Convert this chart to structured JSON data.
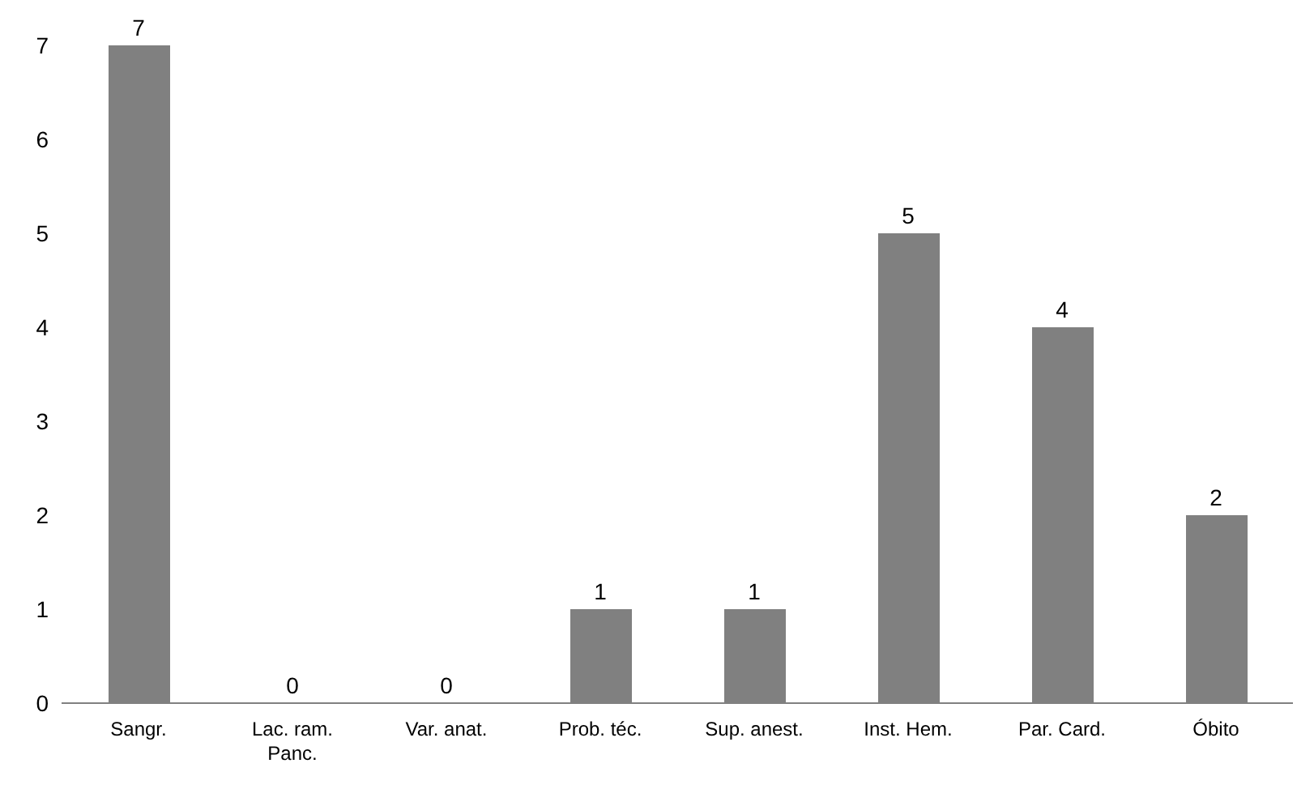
{
  "chart_data": {
    "type": "bar",
    "categories": [
      "Sangr.",
      "Lac. ram. Panc.",
      "Var. anat.",
      "Prob. téc.",
      "Sup. anest.",
      "Inst. Hem.",
      "Par. Card.",
      "Óbito"
    ],
    "values": [
      7,
      0,
      0,
      1,
      1,
      5,
      4,
      2
    ],
    "color": "#808080",
    "ylim": [
      0,
      7
    ],
    "yticks": [
      0,
      1,
      2,
      3,
      4,
      5,
      6,
      7
    ],
    "grid": false,
    "legend": false,
    "data_labels": true
  }
}
